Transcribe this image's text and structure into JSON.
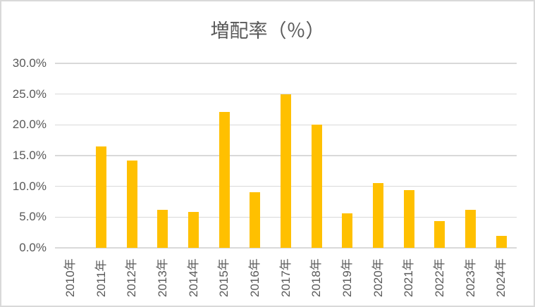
{
  "chart_data": {
    "type": "bar",
    "title": "増配率（％）",
    "categories": [
      "2010年",
      "2011年",
      "2012年",
      "2013年",
      "2014年",
      "2015年",
      "2016年",
      "2017年",
      "2018年",
      "2019年",
      "2020年",
      "2021年",
      "2022年",
      "2023年",
      "2024年"
    ],
    "values": [
      0.0,
      16.5,
      14.2,
      6.2,
      5.8,
      22.1,
      9.1,
      25.0,
      20.0,
      5.6,
      10.5,
      9.4,
      4.3,
      6.2,
      2.0
    ],
    "y_ticks": [
      "0.0%",
      "5.0%",
      "10.0%",
      "15.0%",
      "20.0%",
      "25.0%",
      "30.0%"
    ],
    "ylim": [
      0,
      30
    ],
    "xlabel": "",
    "ylabel": "",
    "grid": true,
    "legend": false,
    "x_label_rotation_deg": -90,
    "colors": {
      "bar": "#FFC000",
      "gridline": "#D9D9D9",
      "axis_line": "#D9D9D9",
      "text": "#595959",
      "border": "#D9D9D9",
      "background": "#FFFFFF"
    }
  }
}
